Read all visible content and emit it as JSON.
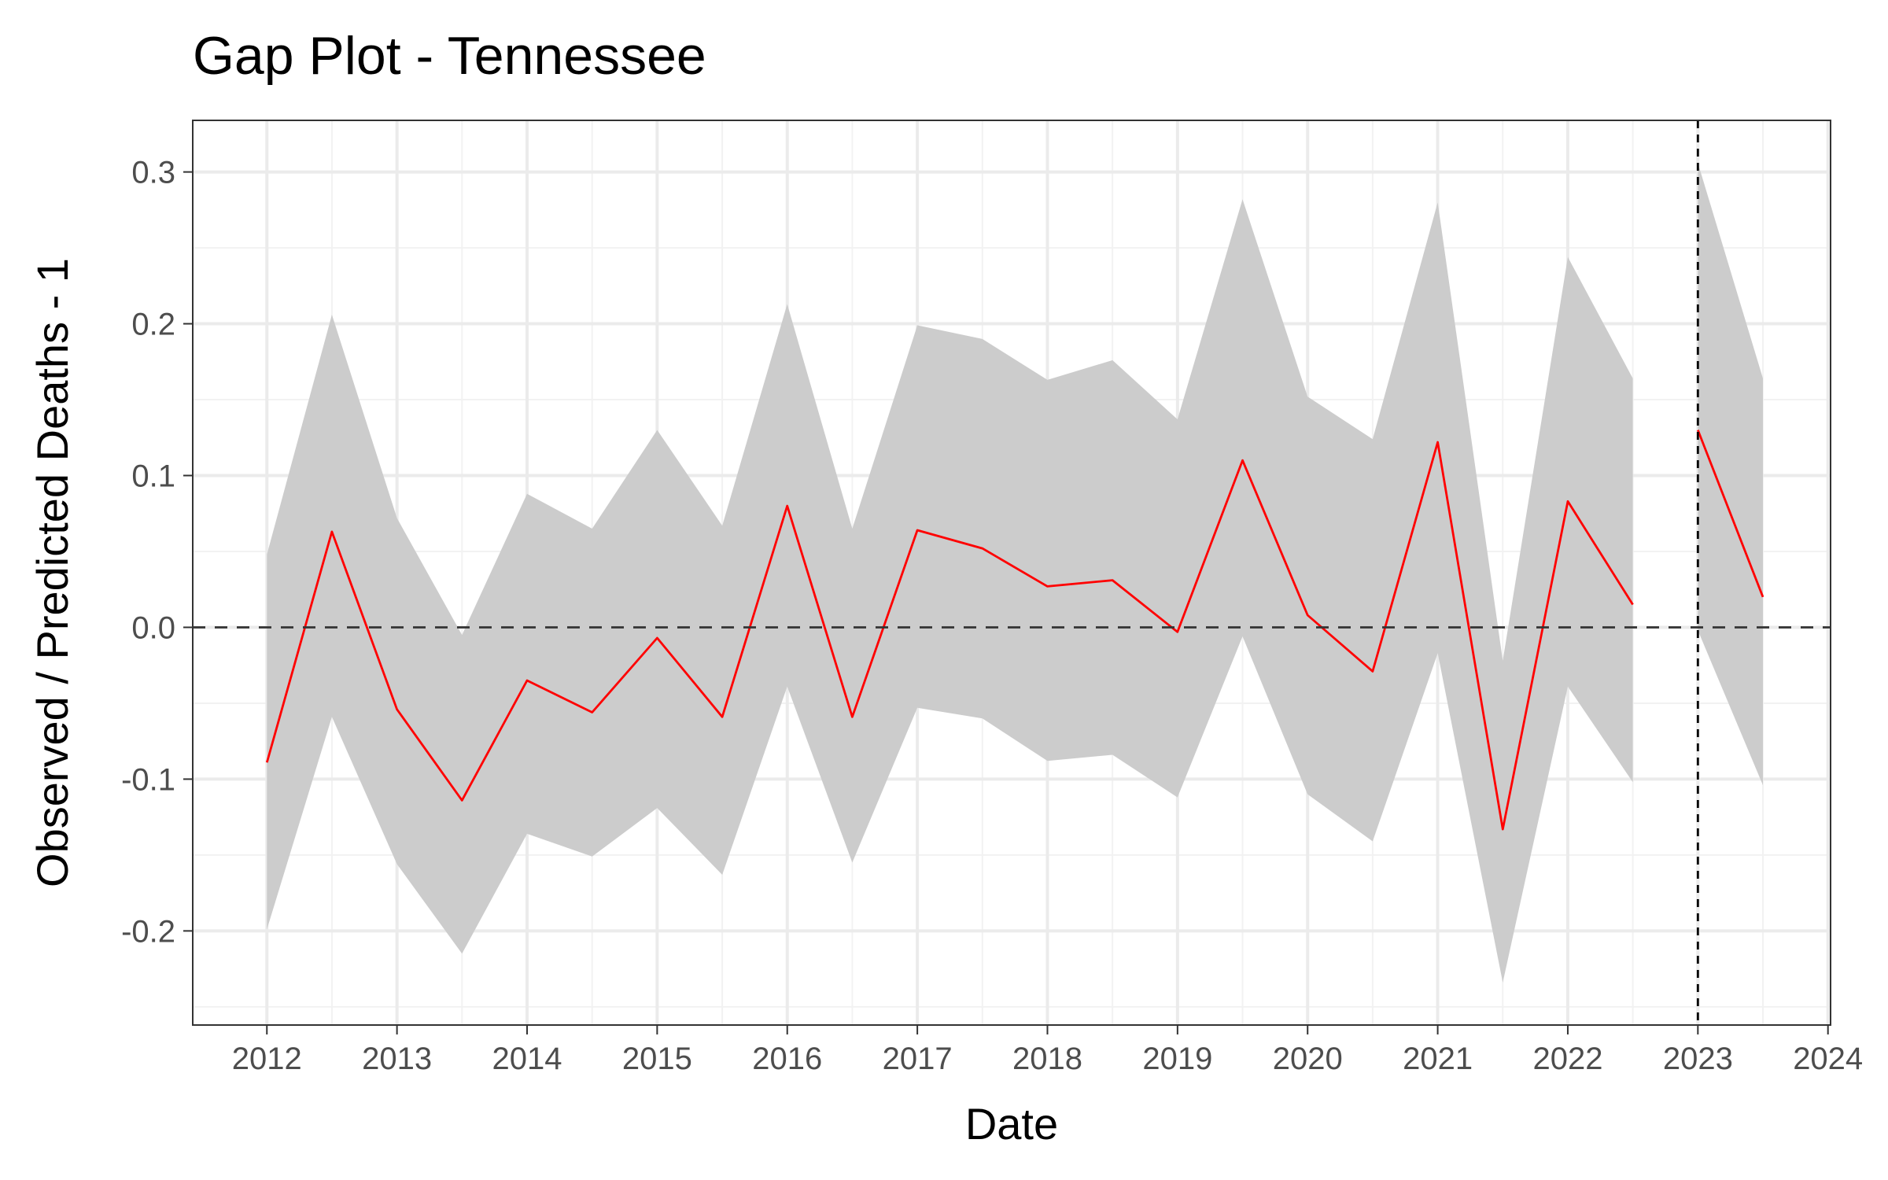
{
  "chart_data": {
    "type": "line",
    "title": "Gap Plot - Tennessee",
    "xlabel": "Date",
    "ylabel": "Observed / Predicted Deaths - 1",
    "xlim": [
      2011.43,
      2024.02
    ],
    "ylim": [
      -0.262,
      0.334
    ],
    "x_ticks": [
      2012,
      2013,
      2014,
      2015,
      2016,
      2017,
      2018,
      2019,
      2020,
      2021,
      2022,
      2023,
      2024
    ],
    "x_tick_labels": [
      "2012",
      "2013",
      "2014",
      "2015",
      "2016",
      "2017",
      "2018",
      "2019",
      "2020",
      "2021",
      "2022",
      "2023",
      "2024"
    ],
    "y_ticks": [
      -0.2,
      -0.1,
      0.0,
      0.1,
      0.2,
      0.3
    ],
    "y_tick_labels": [
      "-0.2",
      "-0.1",
      "0.0",
      "0.1",
      "0.2",
      "0.3"
    ],
    "grid": true,
    "hline": 0.0,
    "vline": 2023.0,
    "series": [
      {
        "name": "pre-period gap",
        "color": "#ff0000",
        "band_color": "#cccccc",
        "x": [
          2012.0,
          2012.5,
          2013.0,
          2013.5,
          2014.0,
          2014.5,
          2015.0,
          2015.5,
          2016.0,
          2016.5,
          2017.0,
          2017.5,
          2018.0,
          2018.5,
          2019.0,
          2019.5,
          2020.0,
          2020.5,
          2021.0,
          2021.5,
          2022.0,
          2022.5
        ],
        "values": [
          -0.089,
          0.063,
          -0.054,
          -0.114,
          -0.035,
          -0.056,
          -0.007,
          -0.059,
          0.08,
          -0.059,
          0.064,
          0.052,
          0.027,
          0.031,
          -0.003,
          0.11,
          0.008,
          -0.029,
          0.122,
          -0.133,
          0.083,
          0.015
        ],
        "lower": [
          -0.199,
          -0.059,
          -0.156,
          -0.215,
          -0.136,
          -0.151,
          -0.119,
          -0.163,
          -0.039,
          -0.155,
          -0.053,
          -0.06,
          -0.088,
          -0.084,
          -0.112,
          -0.006,
          -0.11,
          -0.141,
          -0.017,
          -0.234,
          -0.039,
          -0.102
        ],
        "upper": [
          0.048,
          0.206,
          0.072,
          -0.005,
          0.088,
          0.065,
          0.13,
          0.067,
          0.213,
          0.065,
          0.199,
          0.19,
          0.163,
          0.176,
          0.137,
          0.282,
          0.152,
          0.124,
          0.28,
          -0.022,
          0.244,
          0.164
        ]
      },
      {
        "name": "post-period gap",
        "color": "#ff0000",
        "band_color": "#cccccc",
        "x": [
          2023.0,
          2023.5
        ],
        "values": [
          0.13,
          0.02
        ],
        "lower": [
          -0.002,
          -0.104
        ],
        "upper": [
          0.306,
          0.164
        ]
      }
    ]
  }
}
